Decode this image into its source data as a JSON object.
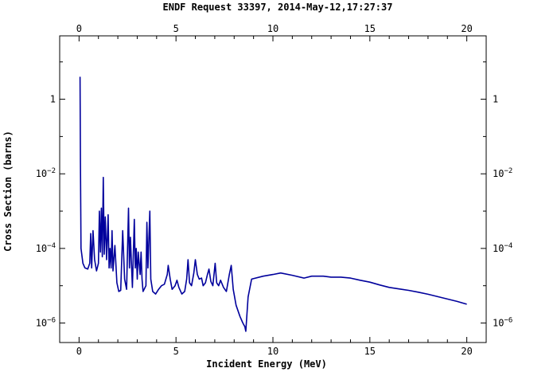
{
  "chart_data": {
    "type": "line",
    "title": "ENDF Request 33397, 2014-May-12,17:27:37",
    "xlabel": "Incident Energy (MeV)",
    "ylabel": "Cross Section (barns)",
    "xlim": [
      -1,
      21
    ],
    "ylim": [
      3e-07,
      50
    ],
    "yscale": "log",
    "x_ticks": [
      0,
      5,
      10,
      15,
      20
    ],
    "y_ticks": [
      {
        "value": 1,
        "base": "1",
        "exp": ""
      },
      {
        "value": 0.01,
        "base": "10",
        "exp": "−2"
      },
      {
        "value": 0.0001,
        "base": "10",
        "exp": "−4"
      },
      {
        "value": 1e-06,
        "base": "10",
        "exp": "−6"
      }
    ],
    "grid": false,
    "line_color": "#00009c",
    "series": [
      {
        "values": [
          [
            0.05,
            4.0
          ],
          [
            0.07,
            0.02
          ],
          [
            0.1,
            0.0001
          ],
          [
            0.2,
            4e-05
          ],
          [
            0.3,
            3e-05
          ],
          [
            0.45,
            2.8e-05
          ],
          [
            0.55,
            4e-05
          ],
          [
            0.6,
            0.00025
          ],
          [
            0.65,
            3e-05
          ],
          [
            0.72,
            0.0003
          ],
          [
            0.8,
            5e-05
          ],
          [
            0.9,
            2.5e-05
          ],
          [
            1.0,
            4e-05
          ],
          [
            1.05,
            0.001
          ],
          [
            1.1,
            8e-05
          ],
          [
            1.15,
            0.0012
          ],
          [
            1.2,
            6e-05
          ],
          [
            1.25,
            0.008
          ],
          [
            1.3,
            7e-05
          ],
          [
            1.35,
            0.0007
          ],
          [
            1.42,
            5e-05
          ],
          [
            1.5,
            0.0008
          ],
          [
            1.55,
            3e-05
          ],
          [
            1.6,
            0.0001
          ],
          [
            1.65,
            3e-05
          ],
          [
            1.7,
            0.0003
          ],
          [
            1.75,
            2.5e-05
          ],
          [
            1.85,
            0.00012
          ],
          [
            1.95,
            1.2e-05
          ],
          [
            2.05,
            7e-06
          ],
          [
            2.15,
            7.5e-06
          ],
          [
            2.25,
            0.0003
          ],
          [
            2.35,
            1.5e-05
          ],
          [
            2.45,
            8e-06
          ],
          [
            2.55,
            0.0012
          ],
          [
            2.6,
            3e-05
          ],
          [
            2.65,
            0.0002
          ],
          [
            2.75,
            9e-06
          ],
          [
            2.85,
            0.0006
          ],
          [
            2.9,
            3e-05
          ],
          [
            2.95,
            0.0001
          ],
          [
            3.0,
            1.5e-05
          ],
          [
            3.05,
            8e-05
          ],
          [
            3.15,
            2e-05
          ],
          [
            3.2,
            8e-05
          ],
          [
            3.25,
            1.5e-05
          ],
          [
            3.3,
            7e-06
          ],
          [
            3.45,
            1e-05
          ],
          [
            3.5,
            0.0005
          ],
          [
            3.55,
            3e-05
          ],
          [
            3.65,
            0.001
          ],
          [
            3.7,
            1.5e-05
          ],
          [
            3.8,
            7e-06
          ],
          [
            3.95,
            6e-06
          ],
          [
            4.1,
            8e-06
          ],
          [
            4.25,
            1e-05
          ],
          [
            4.4,
            1.1e-05
          ],
          [
            4.55,
            2e-05
          ],
          [
            4.6,
            3.5e-05
          ],
          [
            4.7,
            1.5e-05
          ],
          [
            4.8,
            8e-06
          ],
          [
            4.95,
            1e-05
          ],
          [
            5.05,
            1.4e-05
          ],
          [
            5.15,
            9e-06
          ],
          [
            5.3,
            6e-06
          ],
          [
            5.45,
            7e-06
          ],
          [
            5.55,
            1.5e-05
          ],
          [
            5.62,
            5e-05
          ],
          [
            5.7,
            1.2e-05
          ],
          [
            5.8,
            1e-05
          ],
          [
            5.92,
            2.2e-05
          ],
          [
            6.0,
            5e-05
          ],
          [
            6.1,
            2e-05
          ],
          [
            6.2,
            1.5e-05
          ],
          [
            6.32,
            1.6e-05
          ],
          [
            6.4,
            1e-05
          ],
          [
            6.52,
            1.2e-05
          ],
          [
            6.62,
            2e-05
          ],
          [
            6.7,
            2.8e-05
          ],
          [
            6.8,
            1.3e-05
          ],
          [
            6.9,
            1e-05
          ],
          [
            7.02,
            4e-05
          ],
          [
            7.1,
            1.2e-05
          ],
          [
            7.2,
            1e-05
          ],
          [
            7.3,
            1.4e-05
          ],
          [
            7.45,
            9e-06
          ],
          [
            7.6,
            7e-06
          ],
          [
            7.75,
            2e-05
          ],
          [
            7.85,
            3.5e-05
          ],
          [
            7.95,
            8e-06
          ],
          [
            8.1,
            3e-06
          ],
          [
            8.3,
            1.5e-06
          ],
          [
            8.45,
            1e-06
          ],
          [
            8.55,
            8e-07
          ],
          [
            8.6,
            6e-07
          ],
          [
            8.72,
            5e-06
          ],
          [
            8.9,
            1.5e-05
          ],
          [
            9.5,
            1.8e-05
          ],
          [
            10.0,
            2e-05
          ],
          [
            10.4,
            2.2e-05
          ],
          [
            11.0,
            1.9e-05
          ],
          [
            11.6,
            1.6e-05
          ],
          [
            12.0,
            1.8e-05
          ],
          [
            12.6,
            1.8e-05
          ],
          [
            13.0,
            1.7e-05
          ],
          [
            13.5,
            1.7e-05
          ],
          [
            14.0,
            1.6e-05
          ],
          [
            14.5,
            1.4e-05
          ],
          [
            15.0,
            1.25e-05
          ],
          [
            15.5,
            1.05e-05
          ],
          [
            16.0,
            9e-06
          ],
          [
            16.5,
            8.2e-06
          ],
          [
            17.0,
            7.5e-06
          ],
          [
            17.5,
            6.7e-06
          ],
          [
            18.0,
            5.9e-06
          ],
          [
            18.5,
            5.1e-06
          ],
          [
            19.0,
            4.4e-06
          ],
          [
            19.5,
            3.8e-06
          ],
          [
            20.0,
            3.2e-06
          ]
        ]
      }
    ]
  }
}
